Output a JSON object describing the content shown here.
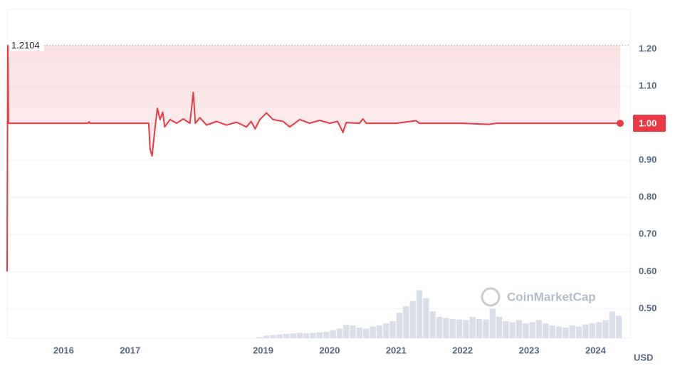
{
  "chart_data": {
    "type": "line",
    "watermark": "CoinMarketCap",
    "y_label": "USD",
    "max_value": 1.2104,
    "current_value": {
      "value": 1.0,
      "label": "1.00"
    },
    "xlim": [
      2015.15,
      2024.52
    ],
    "xticks": [
      2016,
      2017,
      2019,
      2020,
      2021,
      2022,
      2023,
      2024
    ],
    "ylim": [
      0.42,
      1.3
    ],
    "yticks": [
      {
        "value": 0.5,
        "label": "0.50"
      },
      {
        "value": 0.6,
        "label": "0.60"
      },
      {
        "value": 0.7,
        "label": "0.70"
      },
      {
        "value": 0.8,
        "label": "0.80"
      },
      {
        "value": 0.9,
        "label": "0.90"
      },
      {
        "value": 1.0,
        "label": "1.00"
      },
      {
        "value": 1.1,
        "label": "1.10"
      },
      {
        "value": 1.2,
        "label": "1.20"
      }
    ],
    "y2lim": [
      0,
      100
    ],
    "grid": true,
    "series": [
      {
        "color": "#ea3943",
        "x": [
          2015.15,
          2015.16,
          2015.17,
          2016.37,
          2016.38,
          2016.4,
          2017.28,
          2017.3,
          2017.33,
          2017.37,
          2017.41,
          2017.45,
          2017.49,
          2017.52,
          2017.6,
          2017.7,
          2017.8,
          2017.9,
          2017.95,
          2017.98,
          2018.05,
          2018.15,
          2018.3,
          2018.45,
          2018.6,
          2018.75,
          2018.82,
          2018.88,
          2018.95,
          2019.05,
          2019.15,
          2019.3,
          2019.4,
          2019.55,
          2019.7,
          2019.85,
          2020.0,
          2020.12,
          2020.2,
          2020.25,
          2020.45,
          2020.5,
          2020.55,
          2021.0,
          2021.3,
          2021.35,
          2022.0,
          2022.4,
          2022.5,
          2023.0,
          2024.37
        ],
        "values": [
          0.6,
          1.2104,
          1.0,
          1.0,
          1.004,
          1.0,
          1.0,
          0.93,
          0.912,
          0.98,
          1.04,
          1.01,
          1.03,
          0.99,
          1.01,
          1.0,
          1.012,
          1.0,
          1.083,
          1.0,
          1.015,
          0.995,
          1.005,
          0.995,
          1.003,
          0.99,
          1.005,
          0.985,
          1.01,
          1.028,
          1.01,
          1.005,
          0.99,
          1.01,
          1.0,
          1.008,
          1.0,
          1.005,
          0.975,
          1.002,
          1.0,
          1.012,
          1.0,
          1.0,
          1.007,
          1.0,
          1.0,
          0.997,
          1.0,
          1.0,
          1.0
        ]
      },
      {
        "axis": "y2",
        "color": "#cfd6e4",
        "x": [
          2018.9,
          2019.0,
          2019.1,
          2019.2,
          2019.3,
          2019.4,
          2019.5,
          2019.6,
          2019.7,
          2019.8,
          2019.9,
          2020.0,
          2020.1,
          2020.2,
          2020.3,
          2020.4,
          2020.5,
          2020.6,
          2020.7,
          2020.8,
          2020.9,
          2021.0,
          2021.1,
          2021.2,
          2021.3,
          2021.4,
          2021.5,
          2021.6,
          2021.7,
          2021.8,
          2021.9,
          2022.0,
          2022.1,
          2022.2,
          2022.3,
          2022.4,
          2022.5,
          2022.6,
          2022.7,
          2022.8,
          2022.9,
          2023.0,
          2023.1,
          2023.2,
          2023.3,
          2023.4,
          2023.5,
          2023.6,
          2023.7,
          2023.8,
          2023.9,
          2024.0,
          2024.1,
          2024.2,
          2024.3
        ],
        "values": [
          2,
          5,
          6,
          7,
          8,
          9,
          10,
          9,
          10,
          11,
          12,
          15,
          18,
          25,
          24,
          20,
          18,
          22,
          24,
          28,
          32,
          48,
          60,
          70,
          90,
          75,
          50,
          40,
          38,
          36,
          35,
          34,
          40,
          36,
          35,
          55,
          40,
          32,
          30,
          34,
          28,
          30,
          34,
          28,
          24,
          22,
          20,
          24,
          22,
          26,
          28,
          30,
          34,
          50,
          42
        ]
      }
    ]
  }
}
